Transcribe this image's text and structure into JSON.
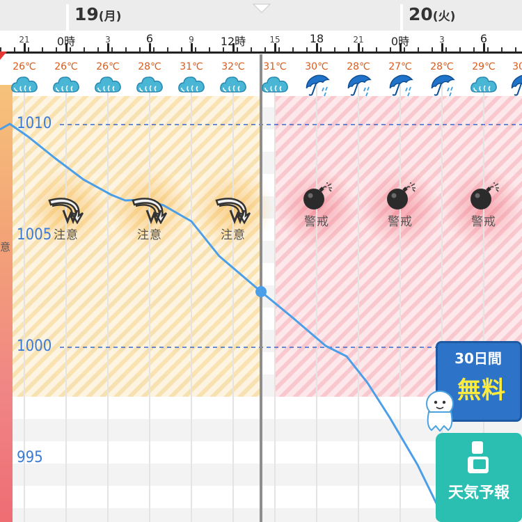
{
  "header": {
    "dates": [
      {
        "day": "19",
        "weekday": "(月)"
      },
      {
        "day": "20",
        "weekday": "(火)"
      }
    ],
    "hours": [
      "21",
      "0時",
      "3",
      "6",
      "9",
      "12時",
      "15",
      "18",
      "21",
      "0時",
      "3",
      "6"
    ],
    "temps": [
      "26℃",
      "26℃",
      "26℃",
      "28℃",
      "31℃",
      "32℃",
      "31℃",
      "30℃",
      "28℃",
      "27℃",
      "28℃",
      "29℃",
      "30"
    ],
    "weather_icons": [
      "cloud-icon",
      "cloud-icon",
      "cloud-icon",
      "cloud-icon",
      "cloud-icon",
      "cloud-icon",
      "cloud-icon",
      "umbrella-icon",
      "umbrella-icon",
      "umbrella-icon",
      "umbrella-icon",
      "cloud-icon",
      "umbrella-icon"
    ]
  },
  "pressure_axis": {
    "labels": [
      "1010",
      "1005",
      "1000",
      "995"
    ],
    "reference_lines": [
      1010,
      1000
    ]
  },
  "side_label": "意",
  "warnings": [
    {
      "icon": "rising-wave-icon",
      "label": "注意",
      "level": "caution"
    },
    {
      "icon": "rising-wave-icon",
      "label": "注意",
      "level": "caution"
    },
    {
      "icon": "rising-wave-icon",
      "label": "注意",
      "level": "caution"
    },
    {
      "icon": "bomb-icon",
      "label": "警戒",
      "level": "alert"
    },
    {
      "icon": "bomb-icon",
      "label": "警戒",
      "level": "alert"
    },
    {
      "icon": "bomb-icon",
      "label": "警戒",
      "level": "alert"
    }
  ],
  "colors": {
    "caution": "#f5b53f",
    "alert": "#ee6b78",
    "pressure_line": "#4a9fe8",
    "accent_text": "#3a7bd5",
    "temp_text": "#d85a1a"
  },
  "promo": {
    "free_top": "30日間",
    "free_big": "無料",
    "forecast_label": "天気予報"
  }
}
